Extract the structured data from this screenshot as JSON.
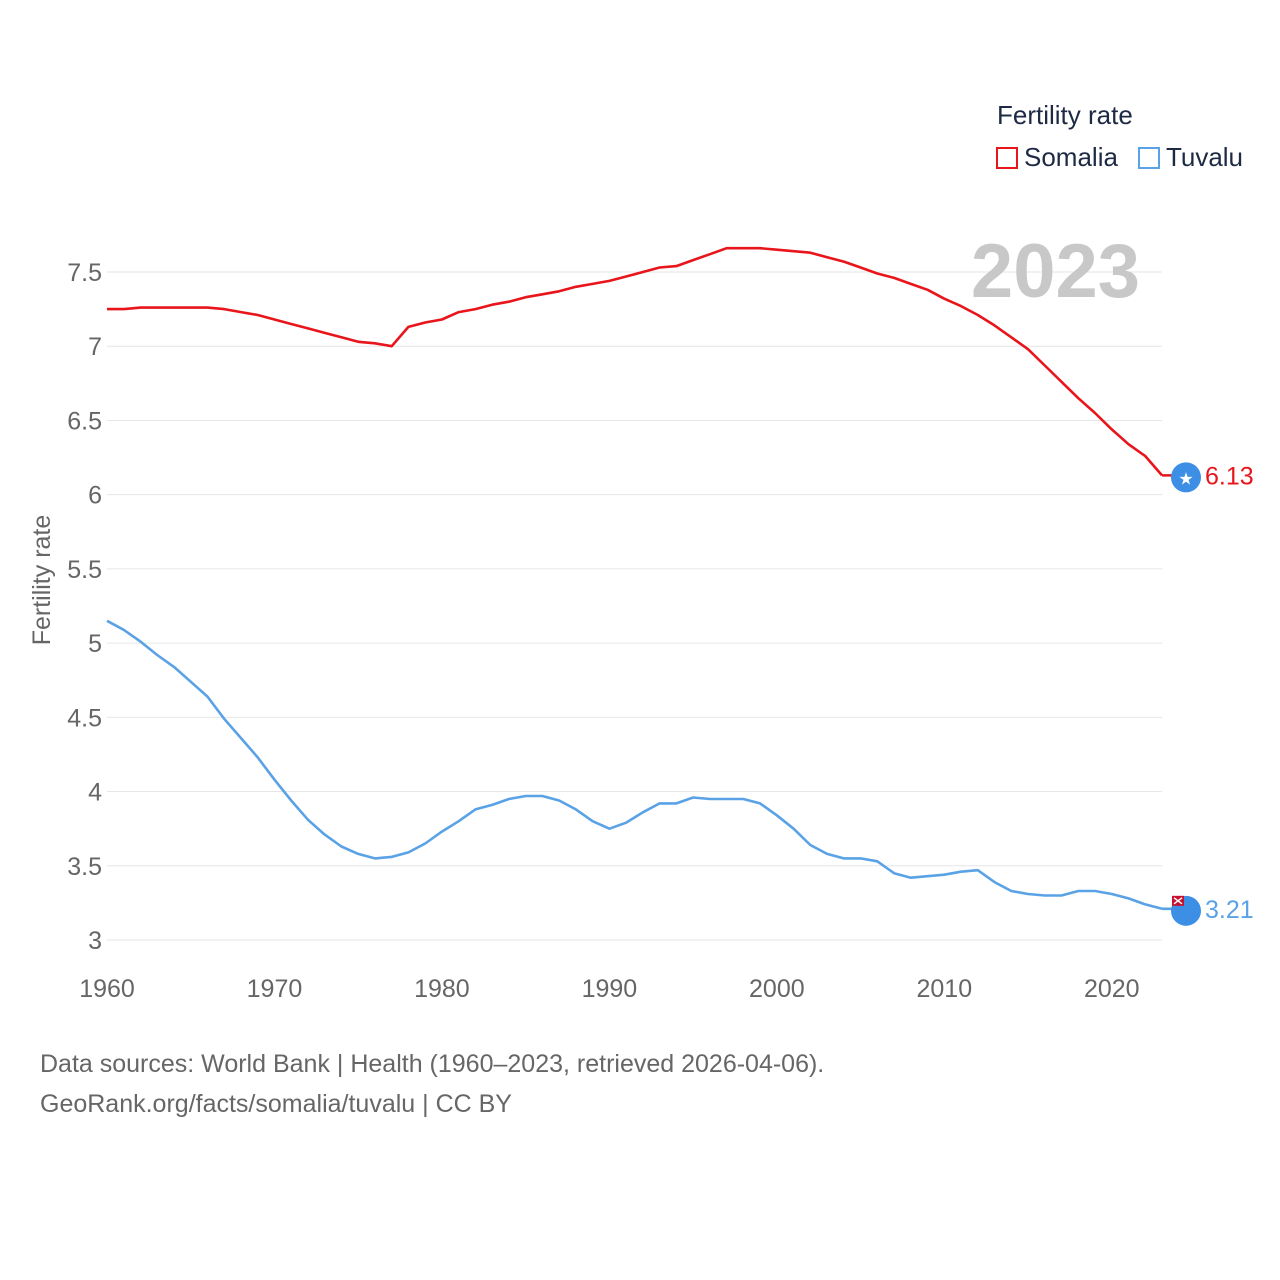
{
  "legend": {
    "title": "Fertility rate",
    "items": [
      {
        "label": "Somalia",
        "color": "#e8151b"
      },
      {
        "label": "Tuvalu",
        "color": "#5aa2e6"
      }
    ]
  },
  "year_label": "2023",
  "footer": {
    "line1": "Data sources: World Bank | Health (1960–2023, retrieved 2026-04-06).",
    "line2": "GeoRank.org/facts/somalia/tuvalu | CC BY"
  },
  "chart_data": {
    "type": "line",
    "title": "Fertility rate",
    "xlabel": "",
    "ylabel": "Fertility rate",
    "xlim": [
      1960,
      2023
    ],
    "ylim": [
      3,
      7.8
    ],
    "xticks": [
      "1960",
      "1970",
      "1980",
      "1990",
      "2000",
      "2010",
      "2020"
    ],
    "yticks": [
      "3",
      "3.5",
      "4",
      "4.5",
      "5",
      "5.5",
      "6",
      "6.5",
      "7",
      "7.5"
    ],
    "legend_position": "top-right",
    "x": [
      1960,
      1961,
      1962,
      1963,
      1964,
      1965,
      1966,
      1967,
      1968,
      1969,
      1970,
      1971,
      1972,
      1973,
      1974,
      1975,
      1976,
      1977,
      1978,
      1979,
      1980,
      1981,
      1982,
      1983,
      1984,
      1985,
      1986,
      1987,
      1988,
      1989,
      1990,
      1991,
      1992,
      1993,
      1994,
      1995,
      1996,
      1997,
      1998,
      1999,
      2000,
      2001,
      2002,
      2003,
      2004,
      2005,
      2006,
      2007,
      2008,
      2009,
      2010,
      2011,
      2012,
      2013,
      2014,
      2015,
      2016,
      2017,
      2018,
      2019,
      2020,
      2021,
      2022,
      2023
    ],
    "series": [
      {
        "name": "Somalia",
        "color": "#e8151b",
        "end_label": "6.13",
        "values": [
          7.25,
          7.25,
          7.26,
          7.26,
          7.26,
          7.26,
          7.26,
          7.25,
          7.23,
          7.21,
          7.18,
          7.15,
          7.12,
          7.09,
          7.06,
          7.03,
          7.02,
          7.0,
          7.13,
          7.16,
          7.18,
          7.23,
          7.25,
          7.28,
          7.3,
          7.33,
          7.35,
          7.37,
          7.4,
          7.42,
          7.44,
          7.47,
          7.5,
          7.53,
          7.54,
          7.58,
          7.62,
          7.66,
          7.66,
          7.66,
          7.65,
          7.64,
          7.63,
          7.6,
          7.57,
          7.53,
          7.49,
          7.46,
          7.42,
          7.38,
          7.32,
          7.27,
          7.21,
          7.14,
          7.06,
          6.98,
          6.87,
          6.76,
          6.65,
          6.55,
          6.44,
          6.34,
          6.26,
          6.13
        ]
      },
      {
        "name": "Tuvalu",
        "color": "#5aa2e6",
        "end_label": "3.21",
        "values": [
          5.15,
          5.09,
          5.01,
          4.92,
          4.84,
          4.74,
          4.64,
          4.49,
          4.36,
          4.23,
          4.08,
          3.94,
          3.81,
          3.71,
          3.63,
          3.58,
          3.55,
          3.56,
          3.59,
          3.65,
          3.73,
          3.8,
          3.88,
          3.91,
          3.95,
          3.97,
          3.97,
          3.94,
          3.88,
          3.8,
          3.75,
          3.79,
          3.86,
          3.92,
          3.92,
          3.96,
          3.95,
          3.95,
          3.95,
          3.92,
          3.84,
          3.75,
          3.64,
          3.58,
          3.55,
          3.55,
          3.53,
          3.45,
          3.42,
          3.43,
          3.44,
          3.46,
          3.47,
          3.39,
          3.33,
          3.31,
          3.3,
          3.3,
          3.33,
          3.33,
          3.31,
          3.28,
          3.24,
          3.21
        ]
      }
    ]
  }
}
